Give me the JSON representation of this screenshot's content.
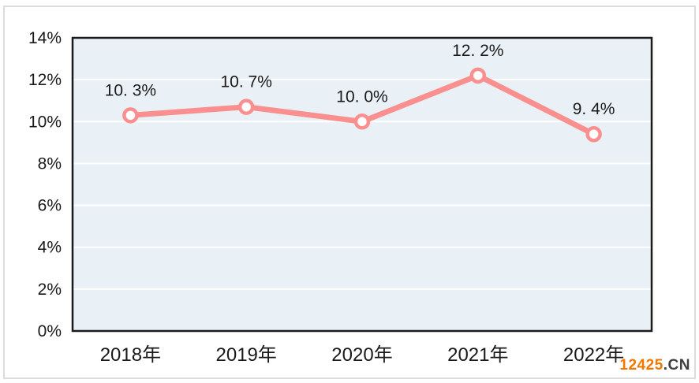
{
  "chart_data": {
    "type": "line",
    "categories": [
      "2018年",
      "2019年",
      "2020年",
      "2021年",
      "2022年"
    ],
    "values": [
      10.3,
      10.7,
      10.0,
      12.2,
      9.4
    ],
    "point_labels": [
      "10. 3%",
      "10. 7%",
      "10. 0%",
      "12. 2%",
      "9. 4%"
    ],
    "title": "",
    "xlabel": "",
    "ylabel": "",
    "ylim": [
      0,
      14
    ],
    "ytick_step": 2,
    "ytick_labels": [
      "0%",
      "2%",
      "4%",
      "6%",
      "8%",
      "10%",
      "12%",
      "14%"
    ],
    "grid": true,
    "legend_position": "none",
    "line_color": "#f9908f",
    "marker_fill": "#ffffff",
    "marker_stroke": "#f9908f",
    "plot_bg": "#eaf1f6",
    "gridline_color": "#ffffff",
    "plot_border_color": "#1a1a1a",
    "axis_text_color": "#1a1a1a"
  },
  "watermark": {
    "brand": "12425",
    "suffix": ".CN",
    "brand_color": "#f07800",
    "suffix_color": "#3f3f3f"
  }
}
